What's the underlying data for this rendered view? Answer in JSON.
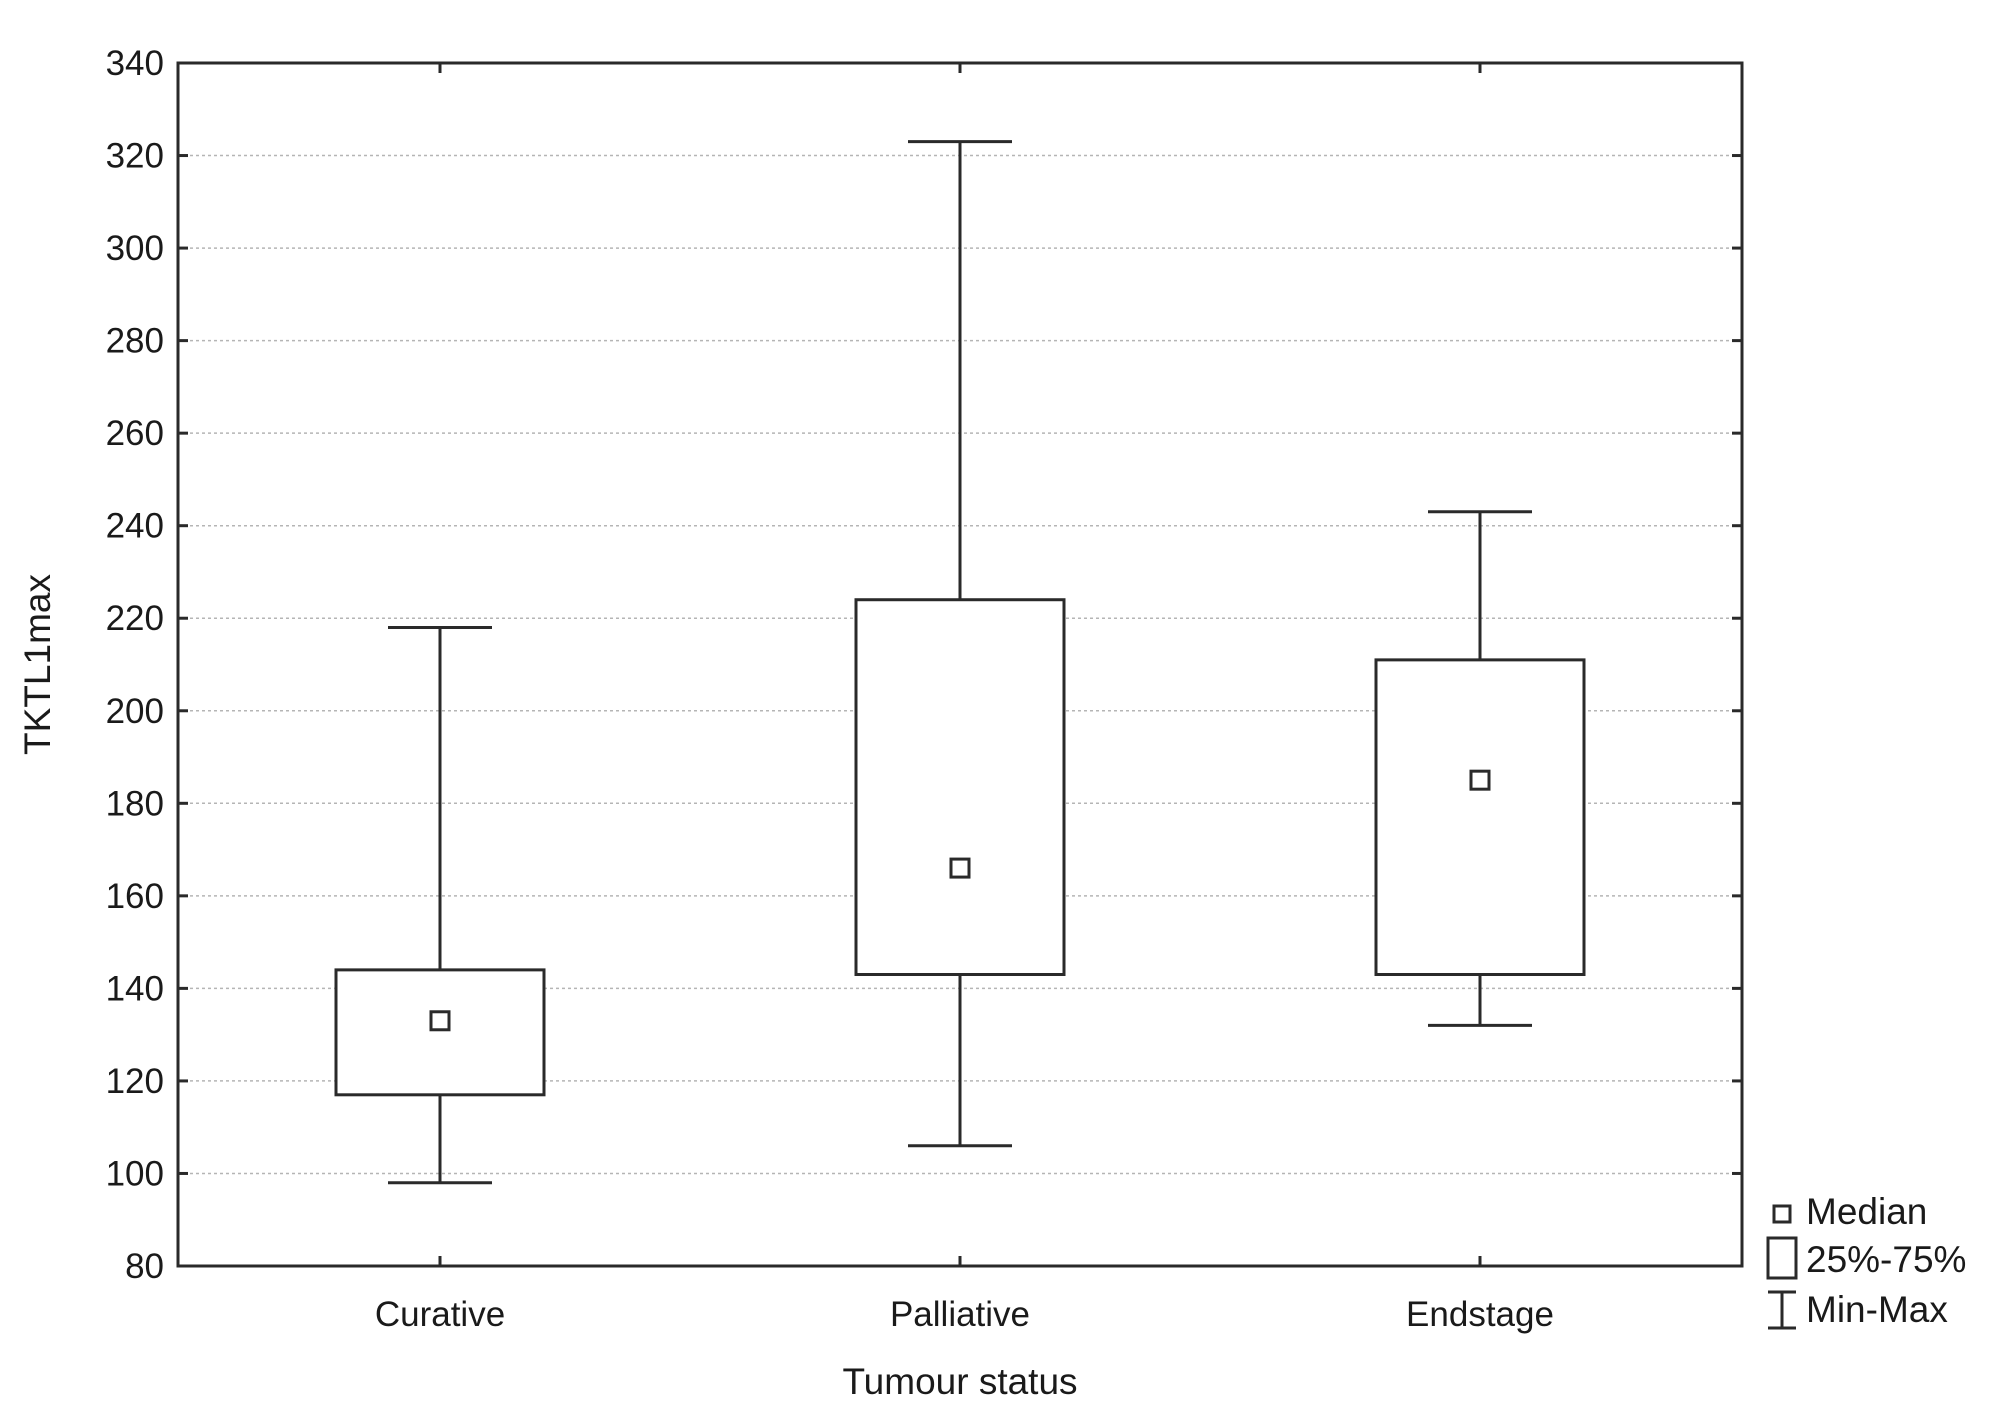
{
  "chart_data": {
    "type": "boxplot",
    "xlabel": "Tumour status",
    "ylabel": "TKTL1max",
    "ylim": [
      80,
      340
    ],
    "yticks": [
      80,
      100,
      120,
      140,
      160,
      180,
      200,
      220,
      240,
      260,
      280,
      300,
      320,
      340
    ],
    "grid": true,
    "legend_position": "right-bottom",
    "categories": [
      "Curative",
      "Palliative",
      "Endstage"
    ],
    "boxes": [
      {
        "category": "Curative",
        "min": 98,
        "q1": 117,
        "median": 133,
        "q3": 144,
        "max": 218
      },
      {
        "category": "Palliative",
        "min": 106,
        "q1": 143,
        "median": 166,
        "q3": 224,
        "max": 323
      },
      {
        "category": "Endstage",
        "min": 132,
        "q1": 143,
        "median": 185,
        "q3": 211,
        "max": 243
      }
    ],
    "legend": [
      {
        "symbol": "median-marker",
        "label": "Median"
      },
      {
        "symbol": "box",
        "label": "25%-75%"
      },
      {
        "symbol": "whisker",
        "label": "Min-Max"
      }
    ],
    "colors": {
      "line": "#2a2a2a",
      "grid": "#b5b5b5",
      "background": "#ffffff"
    }
  }
}
